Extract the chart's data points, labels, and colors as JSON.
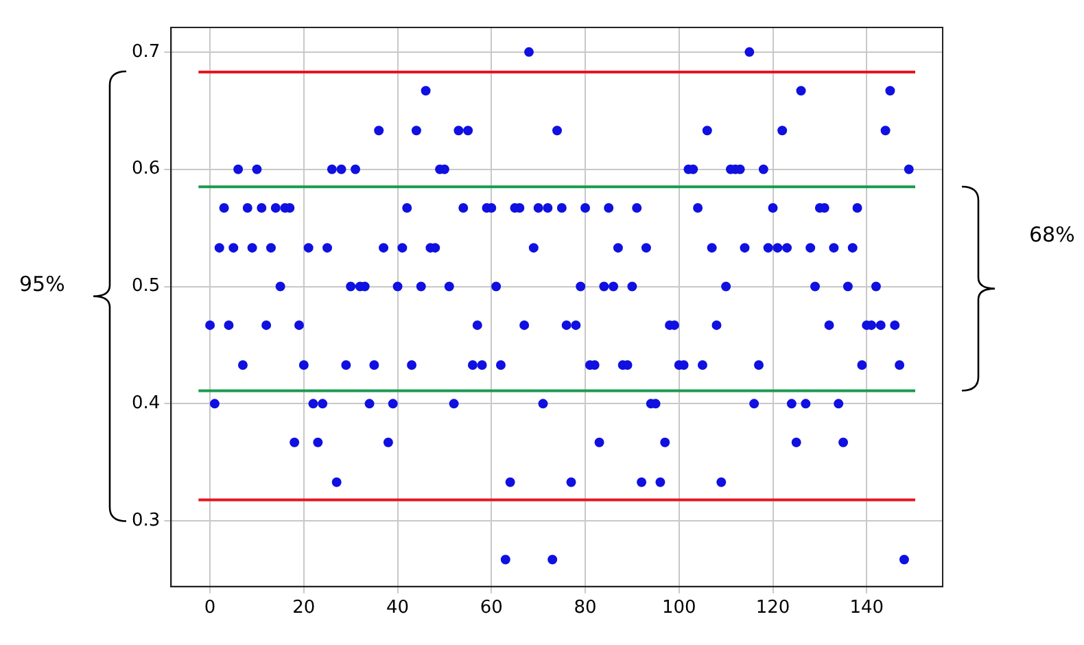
{
  "chart_data": {
    "type": "scatter",
    "x": [
      0,
      1,
      2,
      3,
      4,
      5,
      6,
      7,
      8,
      9,
      10,
      11,
      12,
      13,
      14,
      15,
      16,
      17,
      18,
      19,
      20,
      21,
      22,
      23,
      24,
      25,
      26,
      27,
      28,
      29,
      30,
      31,
      32,
      33,
      34,
      35,
      36,
      37,
      38,
      39,
      40,
      41,
      42,
      43,
      44,
      45,
      46,
      47,
      48,
      49,
      50,
      51,
      52,
      53,
      54,
      55,
      56,
      57,
      58,
      59,
      60,
      61,
      62,
      63,
      64,
      65,
      66,
      67,
      68,
      69,
      70,
      71,
      72,
      73,
      74,
      75,
      76,
      77,
      78,
      79,
      80,
      81,
      82,
      83,
      84,
      85,
      86,
      87,
      88,
      89,
      90,
      91,
      92,
      93,
      94,
      95,
      96,
      97,
      98,
      99,
      100,
      101,
      102,
      103,
      104,
      105,
      106,
      107,
      108,
      109,
      110,
      111,
      112,
      113,
      114,
      115,
      116,
      117,
      118,
      119,
      120,
      121,
      122,
      123,
      124,
      125,
      126,
      127,
      128,
      129,
      130,
      131,
      132,
      133,
      134,
      135,
      136,
      137,
      138,
      139,
      140,
      141,
      142,
      143,
      144,
      145,
      146,
      147,
      148,
      149
    ],
    "series": [
      {
        "color": "#1010e0",
        "values": [
          0.467,
          0.4,
          0.533,
          0.567,
          0.467,
          0.533,
          0.6,
          0.433,
          0.567,
          0.533,
          0.6,
          0.567,
          0.467,
          0.533,
          0.567,
          0.5,
          0.567,
          0.567,
          0.367,
          0.467,
          0.433,
          0.533,
          0.4,
          0.367,
          0.4,
          0.533,
          0.6,
          0.333,
          0.6,
          0.433,
          0.5,
          0.6,
          0.5,
          0.5,
          0.4,
          0.433,
          0.633,
          0.533,
          0.367,
          0.4,
          0.5,
          0.533,
          0.567,
          0.433,
          0.633,
          0.5,
          0.667,
          0.533,
          0.533,
          0.6,
          0.6,
          0.5,
          0.4,
          0.633,
          0.567,
          0.633,
          0.433,
          0.467,
          0.433,
          0.567,
          0.567,
          0.5,
          0.433,
          0.267,
          0.333,
          0.567,
          0.567,
          0.467,
          0.7,
          0.533,
          0.567,
          0.4,
          0.567,
          0.267,
          0.633,
          0.567,
          0.467,
          0.333,
          0.467,
          0.5,
          0.567,
          0.433,
          0.433,
          0.367,
          0.5,
          0.567,
          0.5,
          0.533,
          0.433,
          0.433,
          0.5,
          0.567,
          0.333,
          0.533,
          0.4,
          0.4,
          0.333,
          0.367,
          0.467,
          0.467,
          0.433,
          0.433,
          0.6,
          0.6,
          0.567,
          0.433,
          0.633,
          0.533,
          0.467,
          0.333,
          0.5,
          0.6,
          0.6,
          0.6,
          0.533,
          0.7,
          0.4,
          0.433,
          0.6,
          0.533,
          0.567,
          0.533,
          0.633,
          0.533,
          0.4,
          0.367,
          0.667,
          0.4,
          0.533,
          0.5,
          0.567,
          0.567,
          0.467,
          0.533,
          0.4,
          0.367,
          0.5,
          0.533,
          0.567,
          0.433,
          0.467,
          0.467,
          0.5,
          0.467,
          0.633,
          0.667,
          0.467,
          0.433,
          0.267,
          0.6
        ]
      }
    ],
    "marker": "circle",
    "xlim": [
      -8.3,
      156.2
    ],
    "xticks": [
      0,
      20,
      40,
      60,
      80,
      100,
      120,
      140
    ],
    "ylim": [
      0.244,
      0.721
    ],
    "yticks": [
      0.3,
      0.4,
      0.5,
      0.6,
      0.7
    ],
    "grid": true,
    "legend": false,
    "ref_lines": [
      {
        "axis": "y",
        "value": 0.683,
        "color": "#e8141c"
      },
      {
        "axis": "y",
        "value": 0.318,
        "color": "#e8141c"
      },
      {
        "axis": "y",
        "value": 0.585,
        "color": "#1a9a50"
      },
      {
        "axis": "y",
        "value": 0.411,
        "color": "#1a9a50"
      }
    ],
    "annotations": [
      "95%",
      "68%"
    ]
  }
}
